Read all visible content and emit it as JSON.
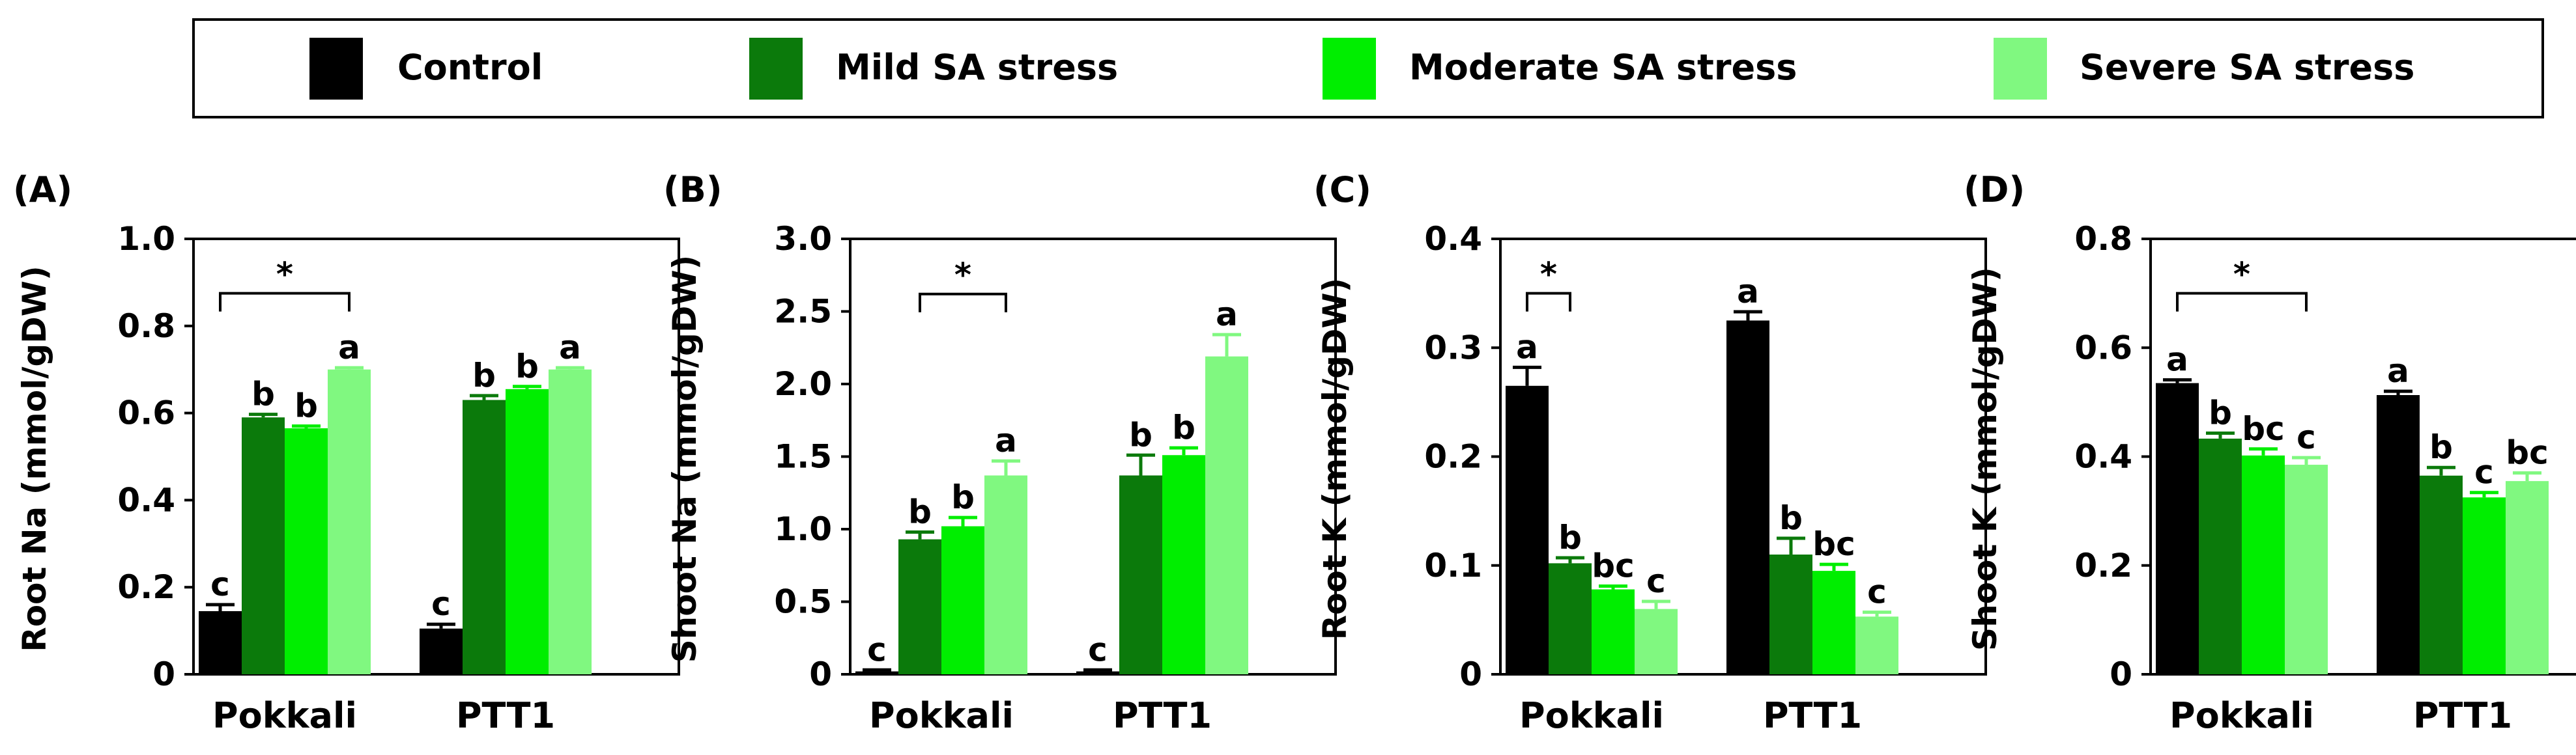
{
  "legend": {
    "entries": [
      {
        "label": "Control",
        "color": "#000000"
      },
      {
        "label": "Mild SA stress",
        "color": "#0b7a0b"
      },
      {
        "label": "Moderate SA stress",
        "color": "#00ee00"
      },
      {
        "label": "Severe SA stress",
        "color": "#80f880"
      }
    ]
  },
  "chart_data": [
    {
      "type": "bar",
      "panel_label": "(A)",
      "ylabel": "Root Na (mmol/gDW)",
      "ylim": [
        0,
        1.0
      ],
      "yticks": [
        "0",
        "0.2",
        "0.4",
        "0.6",
        "0.8",
        "1.0"
      ],
      "categories": [
        "Pokkali",
        "PTT1"
      ],
      "series": [
        {
          "name": "Control",
          "values": [
            0.145,
            0.105
          ],
          "errors": [
            0.015,
            0.01
          ],
          "letters": [
            "c",
            "c"
          ]
        },
        {
          "name": "Mild SA stress",
          "values": [
            0.59,
            0.63
          ],
          "errors": [
            0.007,
            0.01
          ],
          "letters": [
            "b",
            "b"
          ]
        },
        {
          "name": "Moderate SA stress",
          "values": [
            0.565,
            0.655
          ],
          "errors": [
            0.005,
            0.006
          ],
          "letters": [
            "b",
            "b"
          ]
        },
        {
          "name": "Severe SA stress",
          "values": [
            0.7,
            0.7
          ],
          "errors": [
            0.004,
            0.004
          ],
          "letters": [
            "a",
            "a"
          ]
        }
      ],
      "significance": {
        "label": "*",
        "from": [
          "Control",
          "Severe SA stress"
        ],
        "category": "Pokkali",
        "level": 0.875
      }
    },
    {
      "type": "bar",
      "panel_label": "(B)",
      "ylabel": "Shoot Na (mmol/gDW)",
      "ylim": [
        0,
        3.0
      ],
      "yticks": [
        "0",
        "0.5",
        "1.0",
        "1.5",
        "2.0",
        "2.5",
        "3.0"
      ],
      "categories": [
        "Pokkali",
        "PTT1"
      ],
      "series": [
        {
          "name": "Control",
          "values": [
            0.02,
            0.02
          ],
          "errors": [
            0.01,
            0.01
          ],
          "letters": [
            "c",
            "c"
          ]
        },
        {
          "name": "Mild SA stress",
          "values": [
            0.93,
            1.37
          ],
          "errors": [
            0.05,
            0.14
          ],
          "letters": [
            "b",
            "b"
          ]
        },
        {
          "name": "Moderate SA stress",
          "values": [
            1.02,
            1.51
          ],
          "errors": [
            0.06,
            0.05
          ],
          "letters": [
            "b",
            "b"
          ]
        },
        {
          "name": "Severe SA stress",
          "values": [
            1.37,
            2.19
          ],
          "errors": [
            0.1,
            0.15
          ],
          "letters": [
            "a",
            "a"
          ]
        }
      ],
      "significance": {
        "label": "*",
        "from": [
          "Mild SA stress",
          "Severe SA stress"
        ],
        "category": "Pokkali",
        "level": 2.62
      }
    },
    {
      "type": "bar",
      "panel_label": "(C)",
      "ylabel": "Root K (mmol/gDW)",
      "ylim": [
        0,
        0.4
      ],
      "yticks": [
        "0",
        "0.1",
        "0.2",
        "0.3",
        "0.4"
      ],
      "categories": [
        "Pokkali",
        "PTT1"
      ],
      "series": [
        {
          "name": "Control",
          "values": [
            0.265,
            0.325
          ],
          "errors": [
            0.017,
            0.008
          ],
          "letters": [
            "a",
            "a"
          ]
        },
        {
          "name": "Mild SA stress",
          "values": [
            0.102,
            0.11
          ],
          "errors": [
            0.005,
            0.015
          ],
          "letters": [
            "b",
            "b"
          ]
        },
        {
          "name": "Moderate SA stress",
          "values": [
            0.078,
            0.095
          ],
          "errors": [
            0.003,
            0.006
          ],
          "letters": [
            "bc",
            "bc"
          ]
        },
        {
          "name": "Severe SA stress",
          "values": [
            0.06,
            0.053
          ],
          "errors": [
            0.007,
            0.004
          ],
          "letters": [
            "c",
            "c"
          ]
        }
      ],
      "significance": {
        "label": "*",
        "from": [
          "Control",
          "Mild SA stress"
        ],
        "category": "Pokkali",
        "level": 0.35
      }
    },
    {
      "type": "bar",
      "panel_label": "(D)",
      "ylabel": "Shoot K (mmol/gDW)",
      "ylim": [
        0,
        0.8
      ],
      "yticks": [
        "0",
        "0.2",
        "0.4",
        "0.6",
        "0.8"
      ],
      "categories": [
        "Pokkali",
        "PTT1"
      ],
      "series": [
        {
          "name": "Control",
          "values": [
            0.535,
            0.513
          ],
          "errors": [
            0.006,
            0.007
          ],
          "letters": [
            "a",
            "a"
          ]
        },
        {
          "name": "Mild SA stress",
          "values": [
            0.433,
            0.365
          ],
          "errors": [
            0.01,
            0.015
          ],
          "letters": [
            "b",
            "b"
          ]
        },
        {
          "name": "Moderate SA stress",
          "values": [
            0.402,
            0.325
          ],
          "errors": [
            0.012,
            0.009
          ],
          "letters": [
            "bc",
            "c"
          ]
        },
        {
          "name": "Severe SA stress",
          "values": [
            0.385,
            0.355
          ],
          "errors": [
            0.013,
            0.015
          ],
          "letters": [
            "c",
            "bc"
          ]
        }
      ],
      "significance": {
        "label": "*",
        "from": [
          "Control",
          "Severe SA stress"
        ],
        "category": "Pokkali",
        "level": 0.7
      }
    }
  ]
}
